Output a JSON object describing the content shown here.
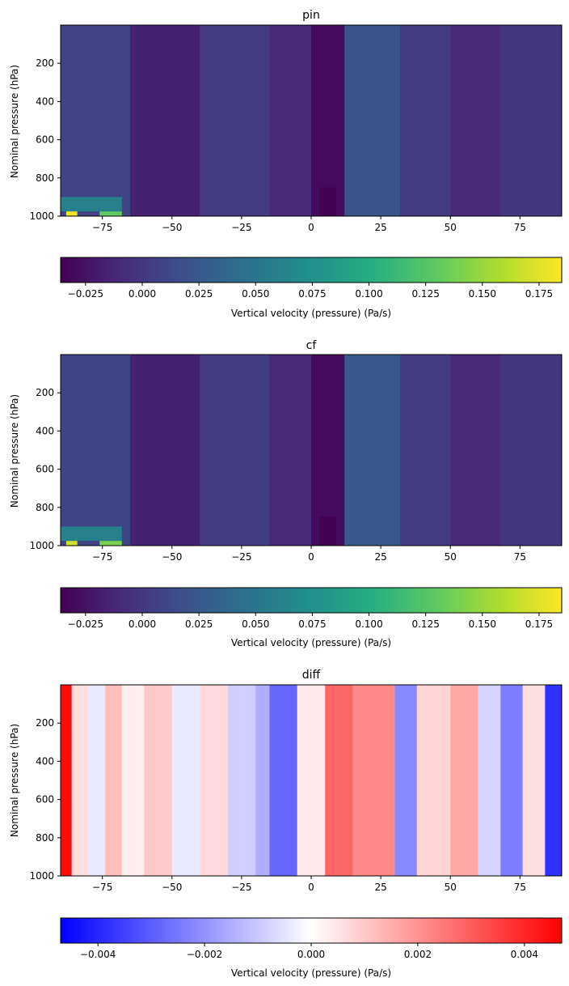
{
  "chart_data": [
    {
      "type": "heatmap",
      "title": "pin",
      "xlabel": "",
      "ylabel": "Nominal pressure (hPa)",
      "xlim": [
        -90,
        90
      ],
      "ylim": [
        1000,
        0
      ],
      "xticks": [
        -75,
        -50,
        -25,
        0,
        25,
        50,
        75
      ],
      "yticks": [
        200,
        400,
        600,
        800,
        1000
      ],
      "colormap": "viridis",
      "colorbar": {
        "label": "Vertical velocity (pressure) (Pa/s)",
        "range": [
          -0.036,
          0.185
        ],
        "ticks": [
          "-0.025",
          "0.000",
          "0.025",
          "0.050",
          "0.075",
          "0.100",
          "0.125",
          "0.150",
          "0.175"
        ],
        "tick_values": [
          -0.025,
          0.0,
          0.025,
          0.05,
          0.075,
          0.1,
          0.125,
          0.15,
          0.175
        ]
      },
      "columns": [
        {
          "lat": [
            -90,
            -65
          ],
          "value": 0.008
        },
        {
          "lat": [
            -65,
            -40
          ],
          "value": -0.015
        },
        {
          "lat": [
            -40,
            -15
          ],
          "value": 0.002
        },
        {
          "lat": [
            -15,
            0
          ],
          "value": -0.01
        },
        {
          "lat": [
            0,
            12
          ],
          "value": -0.03
        },
        {
          "lat": [
            12,
            32
          ],
          "value": 0.022
        },
        {
          "lat": [
            32,
            50
          ],
          "value": 0.002
        },
        {
          "lat": [
            50,
            68
          ],
          "value": -0.01
        },
        {
          "lat": [
            68,
            90
          ],
          "value": 0.0
        }
      ],
      "hotspots": [
        {
          "lat": [
            -88,
            -84
          ],
          "p": [
            975,
            1000
          ],
          "value": 0.18
        },
        {
          "lat": [
            -76,
            -68
          ],
          "p": [
            975,
            1000
          ],
          "value": 0.13
        },
        {
          "lat": [
            -90,
            -68
          ],
          "p": [
            900,
            975
          ],
          "value": 0.06
        },
        {
          "lat": [
            3,
            9
          ],
          "p": [
            850,
            1000
          ],
          "value": -0.036
        }
      ]
    },
    {
      "type": "heatmap",
      "title": "cf",
      "xlabel": "",
      "ylabel": "Nominal pressure (hPa)",
      "xlim": [
        -90,
        90
      ],
      "ylim": [
        1000,
        0
      ],
      "xticks": [
        -75,
        -50,
        -25,
        0,
        25,
        50,
        75
      ],
      "yticks": [
        200,
        400,
        600,
        800,
        1000
      ],
      "colormap": "viridis",
      "colorbar": {
        "label": "Vertical velocity (pressure) (Pa/s)",
        "range": [
          -0.036,
          0.185
        ],
        "ticks": [
          "-0.025",
          "0.000",
          "0.025",
          "0.050",
          "0.075",
          "0.100",
          "0.125",
          "0.150",
          "0.175"
        ],
        "tick_values": [
          -0.025,
          0.0,
          0.025,
          0.05,
          0.075,
          0.1,
          0.125,
          0.15,
          0.175
        ]
      },
      "columns": [
        {
          "lat": [
            -90,
            -65
          ],
          "value": 0.009
        },
        {
          "lat": [
            -65,
            -40
          ],
          "value": -0.015
        },
        {
          "lat": [
            -40,
            -15
          ],
          "value": 0.003
        },
        {
          "lat": [
            -15,
            0
          ],
          "value": -0.01
        },
        {
          "lat": [
            0,
            12
          ],
          "value": -0.03
        },
        {
          "lat": [
            12,
            32
          ],
          "value": 0.024
        },
        {
          "lat": [
            32,
            50
          ],
          "value": 0.002
        },
        {
          "lat": [
            50,
            68
          ],
          "value": -0.01
        },
        {
          "lat": [
            68,
            90
          ],
          "value": 0.0
        }
      ],
      "hotspots": [
        {
          "lat": [
            -88,
            -84
          ],
          "p": [
            975,
            1000
          ],
          "value": 0.17
        },
        {
          "lat": [
            -76,
            -68
          ],
          "p": [
            975,
            1000
          ],
          "value": 0.14
        },
        {
          "lat": [
            -90,
            -68
          ],
          "p": [
            900,
            975
          ],
          "value": 0.06
        },
        {
          "lat": [
            3,
            9
          ],
          "p": [
            850,
            1000
          ],
          "value": -0.036
        }
      ]
    },
    {
      "type": "heatmap",
      "title": "diff",
      "xlabel": "",
      "ylabel": "Nominal pressure (hPa)",
      "xlim": [
        -90,
        90
      ],
      "ylim": [
        1000,
        0
      ],
      "xticks": [
        -75,
        -50,
        -25,
        0,
        25,
        50,
        75
      ],
      "yticks": [
        200,
        400,
        600,
        800,
        1000
      ],
      "colormap": "bwr",
      "colorbar": {
        "label": "Vertical velocity (pressure) (Pa/s)",
        "range": [
          -0.0047,
          0.0047
        ],
        "ticks": [
          "-0.004",
          "-0.002",
          "0.000",
          "0.002",
          "0.004"
        ],
        "tick_values": [
          -0.004,
          -0.002,
          0.0,
          0.002,
          0.004
        ]
      },
      "columns": [
        {
          "lat": [
            -90,
            -86
          ],
          "value": 0.0045
        },
        {
          "lat": [
            -86,
            -80
          ],
          "value": 0.0006
        },
        {
          "lat": [
            -80,
            -74
          ],
          "value": -0.0004
        },
        {
          "lat": [
            -74,
            -68
          ],
          "value": 0.0012
        },
        {
          "lat": [
            -68,
            -60
          ],
          "value": 0.0003
        },
        {
          "lat": [
            -60,
            -50
          ],
          "value": 0.001
        },
        {
          "lat": [
            -50,
            -40
          ],
          "value": -0.0004
        },
        {
          "lat": [
            -40,
            -30
          ],
          "value": 0.0007
        },
        {
          "lat": [
            -30,
            -20
          ],
          "value": -0.0009
        },
        {
          "lat": [
            -20,
            -15
          ],
          "value": -0.0015
        },
        {
          "lat": [
            -15,
            -5
          ],
          "value": -0.0028
        },
        {
          "lat": [
            -5,
            5
          ],
          "value": 0.0004
        },
        {
          "lat": [
            5,
            15
          ],
          "value": 0.0028
        },
        {
          "lat": [
            15,
            30
          ],
          "value": 0.0022
        },
        {
          "lat": [
            30,
            38
          ],
          "value": -0.0022
        },
        {
          "lat": [
            38,
            50
          ],
          "value": 0.0008
        },
        {
          "lat": [
            50,
            60
          ],
          "value": 0.0016
        },
        {
          "lat": [
            60,
            68
          ],
          "value": -0.0008
        },
        {
          "lat": [
            68,
            76
          ],
          "value": -0.0024
        },
        {
          "lat": [
            76,
            84
          ],
          "value": 0.0006
        },
        {
          "lat": [
            84,
            90
          ],
          "value": -0.0038
        }
      ]
    }
  ]
}
